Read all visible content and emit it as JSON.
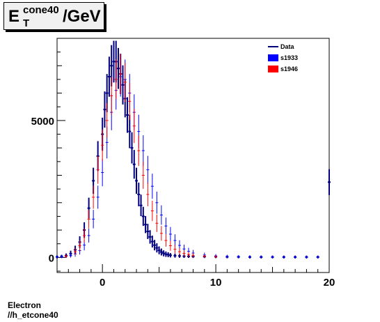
{
  "title": {
    "main": "E",
    "sup": "cone40",
    "sub": "T",
    "unit": "/GeV"
  },
  "caption": {
    "line1": "Electron",
    "line2": "//h_etcone40"
  },
  "colors": {
    "Data": "#000080",
    "s1933": "#0000ff",
    "s1946": "#ff0000",
    "frame": "#000000"
  },
  "chart_data": {
    "type": "scatter",
    "title": "E_T^cone40/GeV",
    "xlabel": "",
    "ylabel": "",
    "xlim": [
      -4,
      20
    ],
    "ylim": [
      -550,
      8000
    ],
    "xticks": [
      0,
      10,
      20
    ],
    "yticks": [
      0,
      5000
    ],
    "legend_position": "top-right",
    "legend": [
      "Data",
      "s1933",
      "s1946"
    ],
    "series": [
      {
        "name": "Data",
        "style": "points with error bars",
        "x": [
          -4.0,
          -3.6,
          -3.2,
          -2.8,
          -2.4,
          -2.0,
          -1.6,
          -1.2,
          -0.8,
          -0.4,
          0.0,
          0.2,
          0.4,
          0.6,
          0.8,
          1.0,
          1.2,
          1.4,
          1.6,
          1.8,
          2.0,
          2.2,
          2.4,
          2.6,
          2.8,
          3.0,
          3.2,
          3.4,
          3.6,
          3.8,
          4.0,
          4.2,
          4.4,
          4.6,
          4.8,
          5.0,
          5.2,
          5.4,
          5.6,
          5.8,
          6.0,
          6.4,
          6.8,
          7.2,
          7.6,
          8.0,
          9.0,
          10.0,
          11.0,
          12.0,
          13.0,
          14.0,
          15.0,
          16.0,
          17.0,
          18.0,
          19.0,
          20.0
        ],
        "y": [
          20,
          40,
          70,
          140,
          280,
          560,
          1000,
          1800,
          2800,
          3700,
          4500,
          5400,
          6000,
          6600,
          7000,
          7150,
          7150,
          6900,
          6700,
          6300,
          5800,
          5200,
          4600,
          4000,
          3400,
          2800,
          2300,
          1900,
          1500,
          1200,
          950,
          750,
          580,
          450,
          350,
          260,
          200,
          150,
          120,
          100,
          80,
          65,
          55,
          45,
          40,
          35,
          30,
          25,
          20,
          20,
          15,
          15,
          15,
          15,
          15,
          15,
          15,
          2750
        ]
      },
      {
        "name": "s1933",
        "style": "points with error bars",
        "x": [
          -4.0,
          -3.6,
          -3.2,
          -2.8,
          -2.4,
          -2.0,
          -1.6,
          -1.2,
          -0.8,
          -0.4,
          0.0,
          0.4,
          0.8,
          1.2,
          1.6,
          2.0,
          2.4,
          2.8,
          3.2,
          3.6,
          4.0,
          4.4,
          4.8,
          5.2,
          5.6,
          6.0,
          6.4,
          6.8,
          7.2,
          7.6,
          8.0,
          9.0,
          10.0,
          11.0,
          12.0,
          13.0,
          14.0,
          15.0,
          16.0,
          17.0,
          18.0,
          19.0
        ],
        "y": [
          15,
          25,
          40,
          70,
          130,
          250,
          450,
          800,
          1400,
          2200,
          3100,
          4200,
          5300,
          6100,
          6600,
          6500,
          6000,
          5300,
          4600,
          3900,
          3200,
          2600,
          2000,
          1550,
          1150,
          850,
          620,
          440,
          310,
          220,
          160,
          90,
          55,
          40,
          30,
          25,
          20,
          20,
          15,
          15,
          15,
          15
        ]
      },
      {
        "name": "s1946",
        "style": "points with error bars",
        "x": [
          -3.2,
          -2.4,
          -2.0,
          -1.6,
          -1.2,
          -0.8,
          -0.4,
          0.0,
          0.4,
          0.8,
          1.2,
          1.6,
          2.0,
          2.4,
          2.8,
          3.2,
          3.6,
          4.0,
          4.4,
          4.8,
          5.2,
          5.6,
          6.0,
          6.4,
          6.8,
          7.2,
          7.6,
          8.0,
          9.0,
          10.0
        ],
        "y": [
          45,
          210,
          430,
          800,
          1400,
          2200,
          3200,
          4100,
          5000,
          5900,
          6500,
          6700,
          6400,
          5700,
          4800,
          3900,
          3000,
          2300,
          1700,
          1250,
          880,
          620,
          430,
          300,
          210,
          150,
          110,
          80,
          45,
          30
        ]
      }
    ]
  }
}
